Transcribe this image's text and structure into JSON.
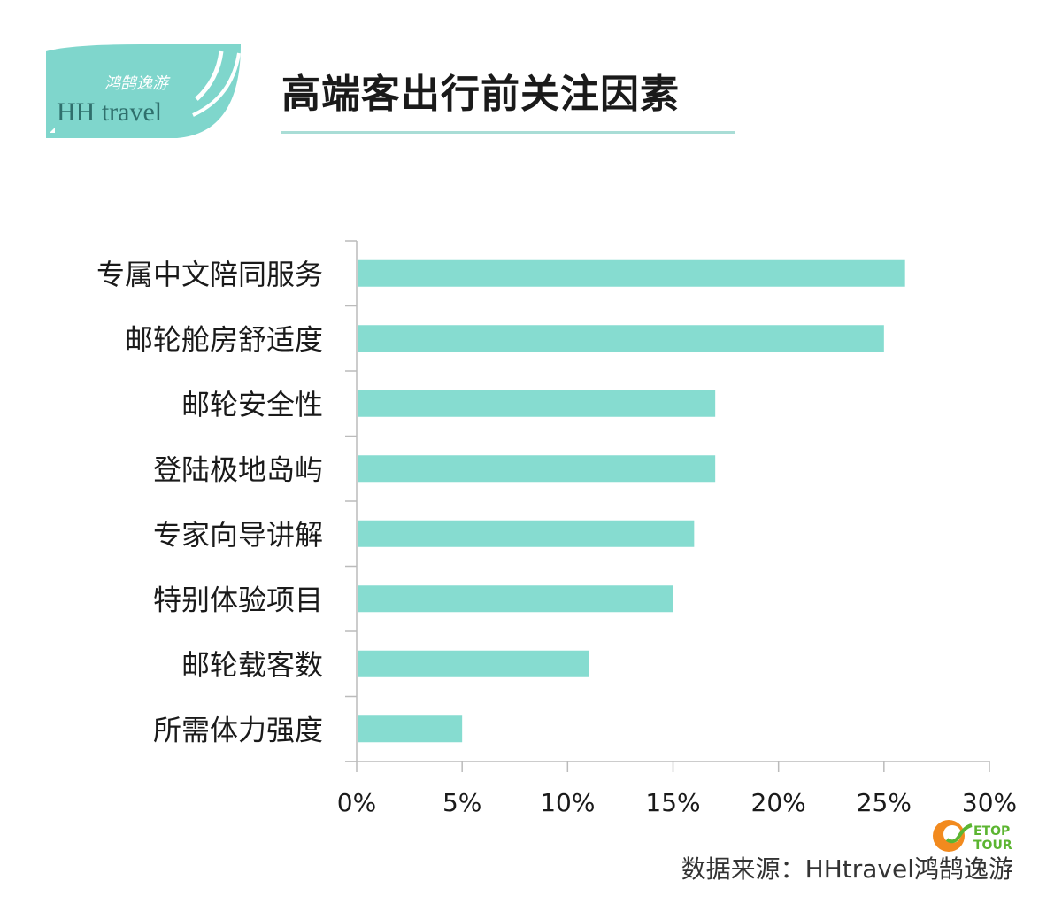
{
  "logo": {
    "brand_cn": "鸿鹄逸游",
    "brand_en": "HH travel",
    "color": "#7fd6cc",
    "text_color": "#2f6f6c"
  },
  "watermark_logo": {
    "line1": "ETOP",
    "line2": "TOUR"
  },
  "source": "数据来源：HHtravel鸿鹄逸游",
  "chart_data": {
    "type": "bar",
    "orientation": "horizontal",
    "title": "高端客出行前关注因素",
    "categories": [
      "专属中文陪同服务",
      "邮轮舱房舒适度",
      "邮轮安全性",
      "登陆极地岛屿",
      "专家向导讲解",
      "特别体验项目",
      "邮轮载客数",
      "所需体力强度"
    ],
    "values": [
      26,
      25,
      17,
      17,
      16,
      15,
      11,
      5
    ],
    "unit": "%",
    "xlim": [
      0,
      30
    ],
    "xticks": [
      "0%",
      "5%",
      "10%",
      "15%",
      "20%",
      "25%",
      "30%"
    ],
    "grid": false,
    "bar_color": "#86dcd0"
  }
}
